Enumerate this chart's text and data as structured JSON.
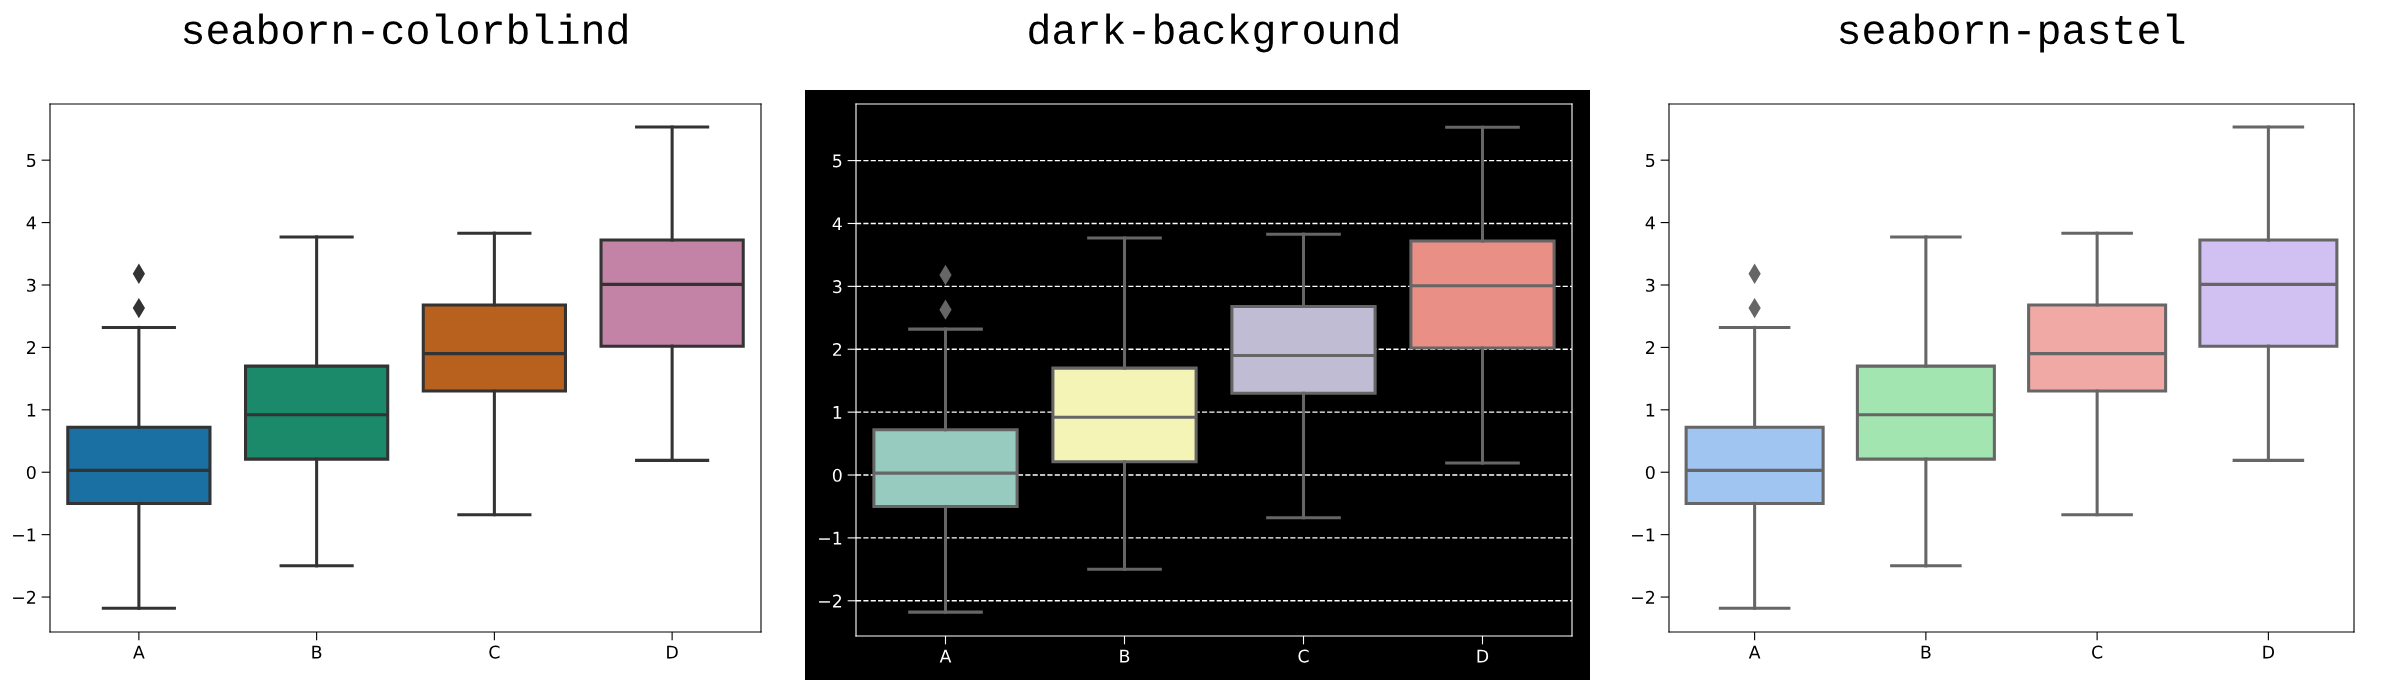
{
  "chart_data": [
    {
      "type": "box",
      "title": "seaborn-colorblind",
      "categories": [
        "A",
        "B",
        "C",
        "D"
      ],
      "boxes": [
        {
          "low": -2.18,
          "q1": -0.5,
          "median": 0.03,
          "q3": 0.72,
          "high": 2.32,
          "outliers": [
            2.63,
            3.18
          ]
        },
        {
          "low": -1.5,
          "q1": 0.21,
          "median": 0.92,
          "q3": 1.7,
          "high": 3.77
        },
        {
          "low": -0.68,
          "q1": 1.3,
          "median": 1.9,
          "q3": 2.68,
          "high": 3.83
        },
        {
          "low": 0.19,
          "q1": 2.02,
          "median": 3.01,
          "q3": 3.72,
          "high": 5.53
        }
      ],
      "colors": [
        "#1a6fa3",
        "#1a8a6a",
        "#b8611f",
        "#c283a6"
      ],
      "ylim": [
        -2.56,
        5.9
      ],
      "yticks": [
        -2,
        -1,
        0,
        1,
        2,
        3,
        4,
        5
      ],
      "grid": false
    },
    {
      "type": "box",
      "title": "dark-background",
      "categories": [
        "A",
        "B",
        "C",
        "D"
      ],
      "boxes": [
        {
          "low": -2.18,
          "q1": -0.5,
          "median": 0.03,
          "q3": 0.72,
          "high": 2.32,
          "outliers": [
            2.63,
            3.18
          ]
        },
        {
          "low": -1.5,
          "q1": 0.21,
          "median": 0.92,
          "q3": 1.7,
          "high": 3.77
        },
        {
          "low": -0.68,
          "q1": 1.3,
          "median": 1.9,
          "q3": 2.68,
          "high": 3.83
        },
        {
          "low": 0.19,
          "q1": 2.02,
          "median": 3.01,
          "q3": 3.72,
          "high": 5.53
        }
      ],
      "colors": [
        "#98cbc0",
        "#f5f4b7",
        "#c0bcd4",
        "#e98f85"
      ],
      "ylim": [
        -2.56,
        5.9
      ],
      "yticks": [
        -2,
        -1,
        0,
        1,
        2,
        3,
        4,
        5
      ],
      "grid": "y"
    },
    {
      "type": "box",
      "title": "seaborn-pastel",
      "categories": [
        "A",
        "B",
        "C",
        "D"
      ],
      "boxes": [
        {
          "low": -2.18,
          "q1": -0.5,
          "median": 0.03,
          "q3": 0.72,
          "high": 2.32,
          "outliers": [
            2.63,
            3.18
          ]
        },
        {
          "low": -1.5,
          "q1": 0.21,
          "median": 0.92,
          "q3": 1.7,
          "high": 3.77
        },
        {
          "low": -0.68,
          "q1": 1.3,
          "median": 1.9,
          "q3": 2.68,
          "high": 3.83
        },
        {
          "low": 0.19,
          "q1": 2.02,
          "median": 3.01,
          "q3": 3.72,
          "high": 5.53
        }
      ],
      "colors": [
        "#9fc5f0",
        "#a3e5b0",
        "#f0a9a4",
        "#d0c1f2"
      ],
      "ylim": [
        -2.56,
        5.9
      ],
      "yticks": [
        -2,
        -1,
        0,
        1,
        2,
        3,
        4,
        5
      ],
      "grid": false
    }
  ]
}
